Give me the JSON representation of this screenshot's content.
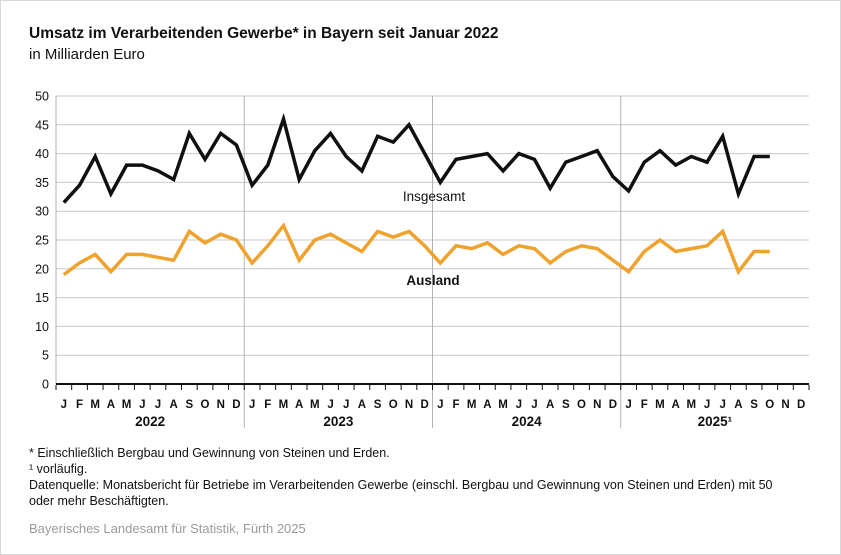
{
  "title": "Umsatz im Verarbeitenden Gewerbe* in Bayern seit Januar 2022",
  "subtitle": "in Milliarden Euro",
  "footnotes": [
    "* Einschließlich Bergbau und Gewinnung von Steinen und Erden.",
    "¹ vorläufig.",
    "Datenquelle: Monatsbericht für Betriebe im Verarbeitenden Gewerbe (einschl. Bergbau und Gewinnung von Steinen und Erden) mit 50 oder mehr Beschäftigten."
  ],
  "publisher": "Bayerisches Landesamt für Statistik, Fürth 2025",
  "colors": {
    "insgesamt": "#101010",
    "ausland": "#efa32e",
    "grid": "#c9c9c9",
    "year_separator": "#b3b3b3",
    "axis": "#111111",
    "publisher_gray": "#9b9b9b"
  },
  "chart_data": {
    "type": "line",
    "title": "Umsatz im Verarbeitenden Gewerbe in Bayern seit Januar 2022",
    "ylabel": "in Milliarden Euro",
    "ylim": [
      0,
      50
    ],
    "yticks": [
      0,
      5,
      10,
      15,
      20,
      25,
      30,
      35,
      40,
      45,
      50
    ],
    "grid": true,
    "legend_position": "inline-labels",
    "month_letters": [
      "J",
      "F",
      "M",
      "A",
      "M",
      "J",
      "J",
      "A",
      "S",
      "O",
      "N",
      "D"
    ],
    "years": [
      "2022",
      "2023",
      "2024",
      "2025¹"
    ],
    "x_note": "monthly values Jan 2022 – Oct 2025",
    "series": [
      {
        "name": "Insgesamt",
        "color": "#101010",
        "values": [
          31.5,
          34.5,
          39.5,
          33,
          38,
          38,
          37,
          35.5,
          43.5,
          39,
          43.5,
          41.5,
          34.5,
          38,
          46,
          35.5,
          40.5,
          43.5,
          39.5,
          37,
          43,
          42,
          45,
          40,
          35,
          39,
          39.5,
          40,
          37,
          40,
          39,
          34,
          38.5,
          39.5,
          40.5,
          36,
          33.5,
          38.5,
          40.5,
          38,
          39.5,
          38.5,
          43,
          33,
          39.5,
          39.5
        ]
      },
      {
        "name": "Ausland",
        "color": "#efa32e",
        "values": [
          19,
          21,
          22.5,
          19.5,
          22.5,
          22.5,
          22,
          21.5,
          26.5,
          24.5,
          26,
          25,
          21,
          24,
          27.5,
          21.5,
          25,
          26,
          24.5,
          23,
          26.5,
          25.5,
          26.5,
          24,
          21,
          24,
          23.5,
          24.5,
          22.5,
          24,
          23.5,
          21,
          23,
          24,
          23.5,
          21.5,
          19.5,
          23,
          25,
          23,
          23.5,
          24,
          26.5,
          19.5,
          23,
          23
        ]
      }
    ]
  }
}
